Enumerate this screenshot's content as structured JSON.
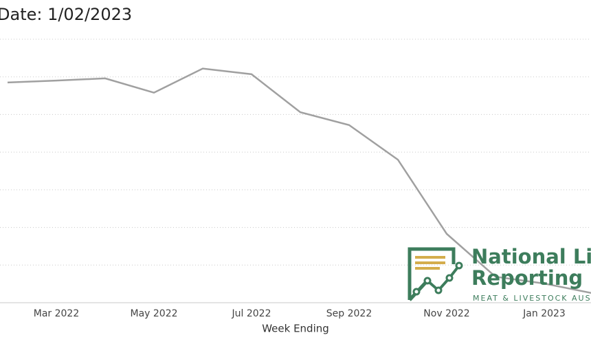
{
  "chart_data": {
    "type": "line",
    "title": "Date: 1/02/2023",
    "x_label": "Week Ending",
    "categories": [
      null,
      "Mar 2022",
      null,
      "May 2022",
      null,
      "Jul 2022",
      null,
      "Sep 2022",
      null,
      "Nov 2022",
      null,
      "Jan 2023",
      null
    ],
    "series": [
      {
        "color": "#a0a0a0",
        "values": [
          5.85,
          5.9,
          5.96,
          5.58,
          6.22,
          6.07,
          5.06,
          4.72,
          3.8,
          1.83,
          0.69,
          0.51,
          0.25
        ]
      }
    ],
    "ylim": [
      0,
      7
    ],
    "yticks": [
      0,
      1,
      2,
      3,
      4,
      5,
      6,
      7
    ],
    "grid": true
  },
  "logo": {
    "line1": "National Liv",
    "line2": "Reporting S",
    "tagline": "MEAT & LIVESTOCK AUST"
  }
}
